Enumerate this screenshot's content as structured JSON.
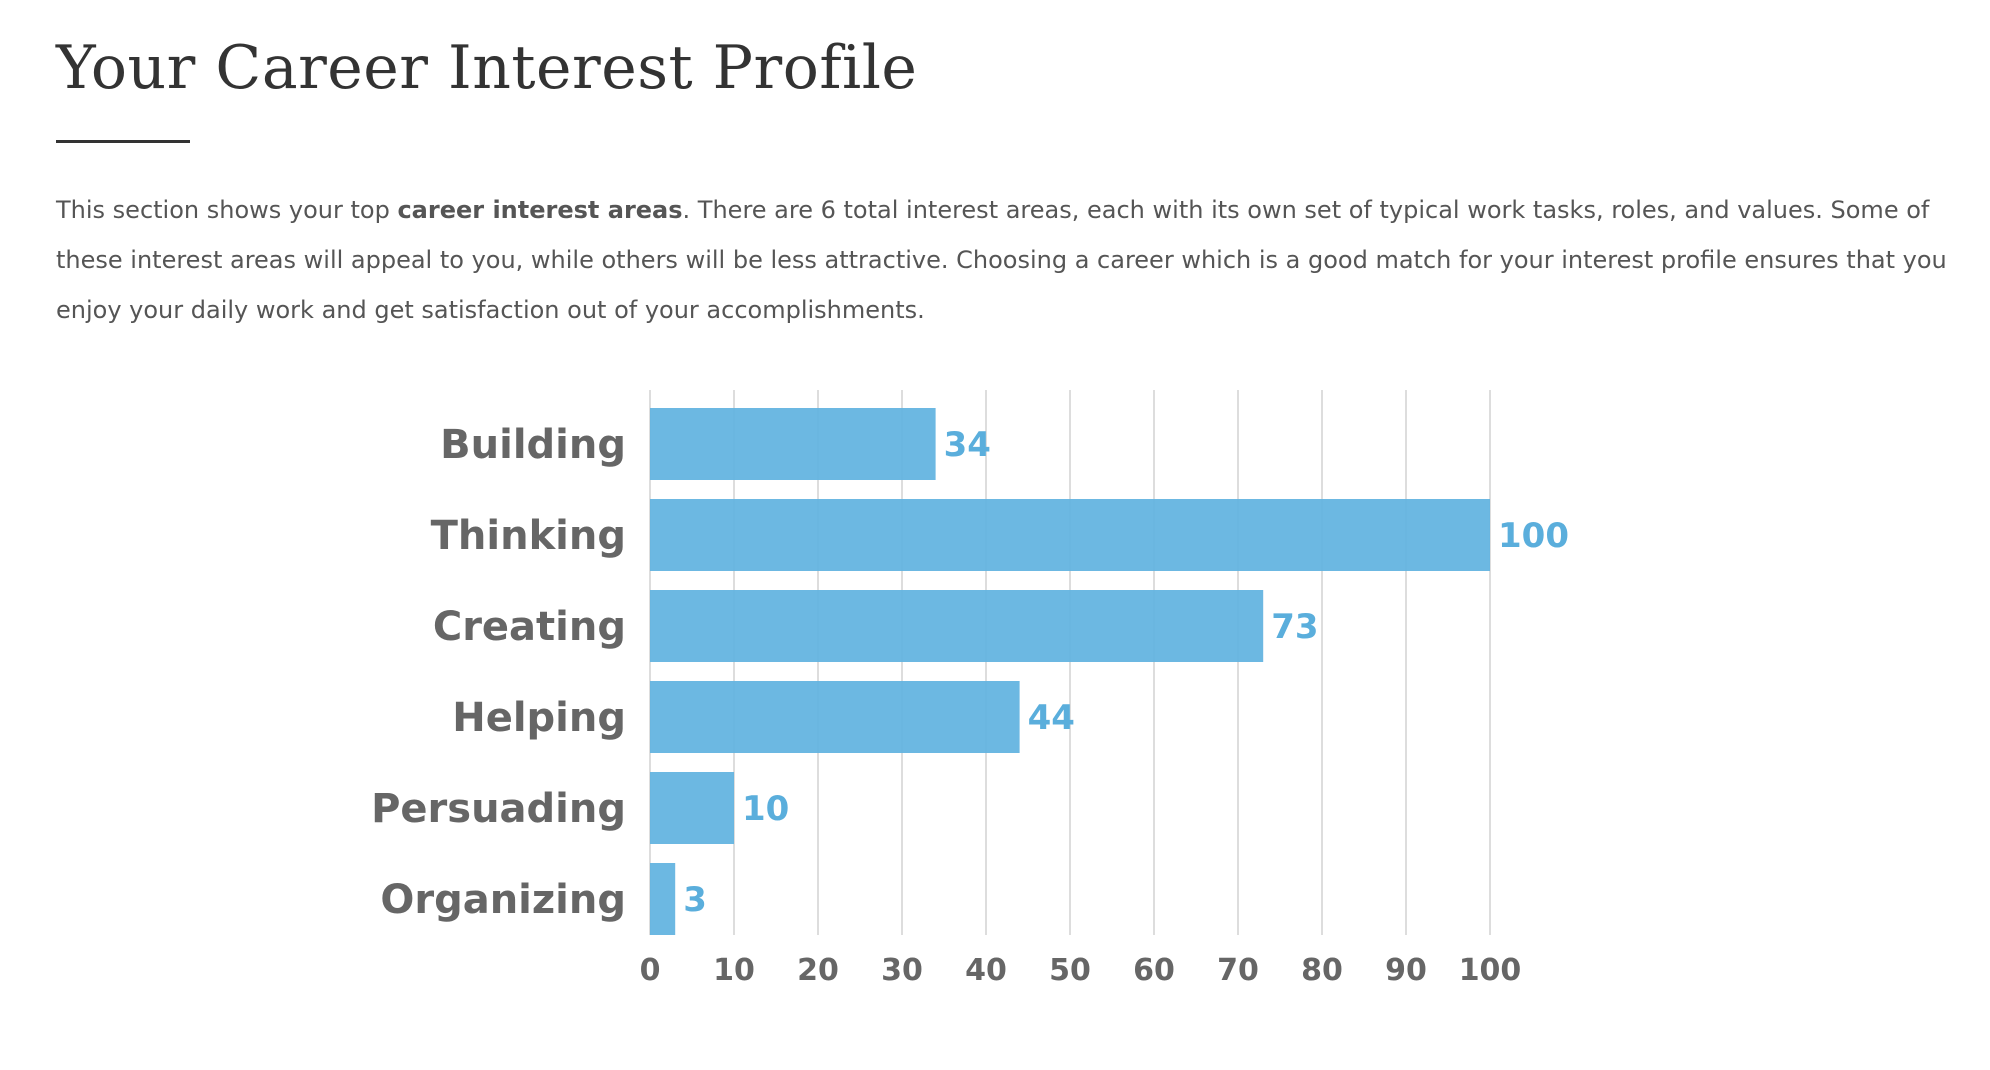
{
  "header": {
    "title": "Your Career Interest Profile"
  },
  "intro": {
    "part1": "This section shows your top ",
    "bold": "career interest areas",
    "part2": ". There are 6 total interest areas, each with its own set of typical work tasks, roles, and values. Some of these interest areas will appeal to you, while others will be less attractive. Choosing a career which is a good match for your interest profile ensures that you enjoy your daily work and get satisfaction out of your accomplishments."
  },
  "colors": {
    "bar": "#5FB2E0",
    "value_label": "#5AAEDC",
    "grid": "#dddddd",
    "text": "#666666"
  },
  "chart_data": {
    "type": "bar",
    "orientation": "horizontal",
    "categories": [
      "Building",
      "Thinking",
      "Creating",
      "Helping",
      "Persuading",
      "Organizing"
    ],
    "values": [
      34,
      100,
      73,
      44,
      10,
      3
    ],
    "title": "",
    "xlabel": "",
    "ylabel": "",
    "xlim": [
      0,
      100
    ],
    "xticks": [
      0,
      10,
      20,
      30,
      40,
      50,
      60,
      70,
      80,
      90,
      100
    ],
    "grid": true,
    "data_labels": true
  }
}
